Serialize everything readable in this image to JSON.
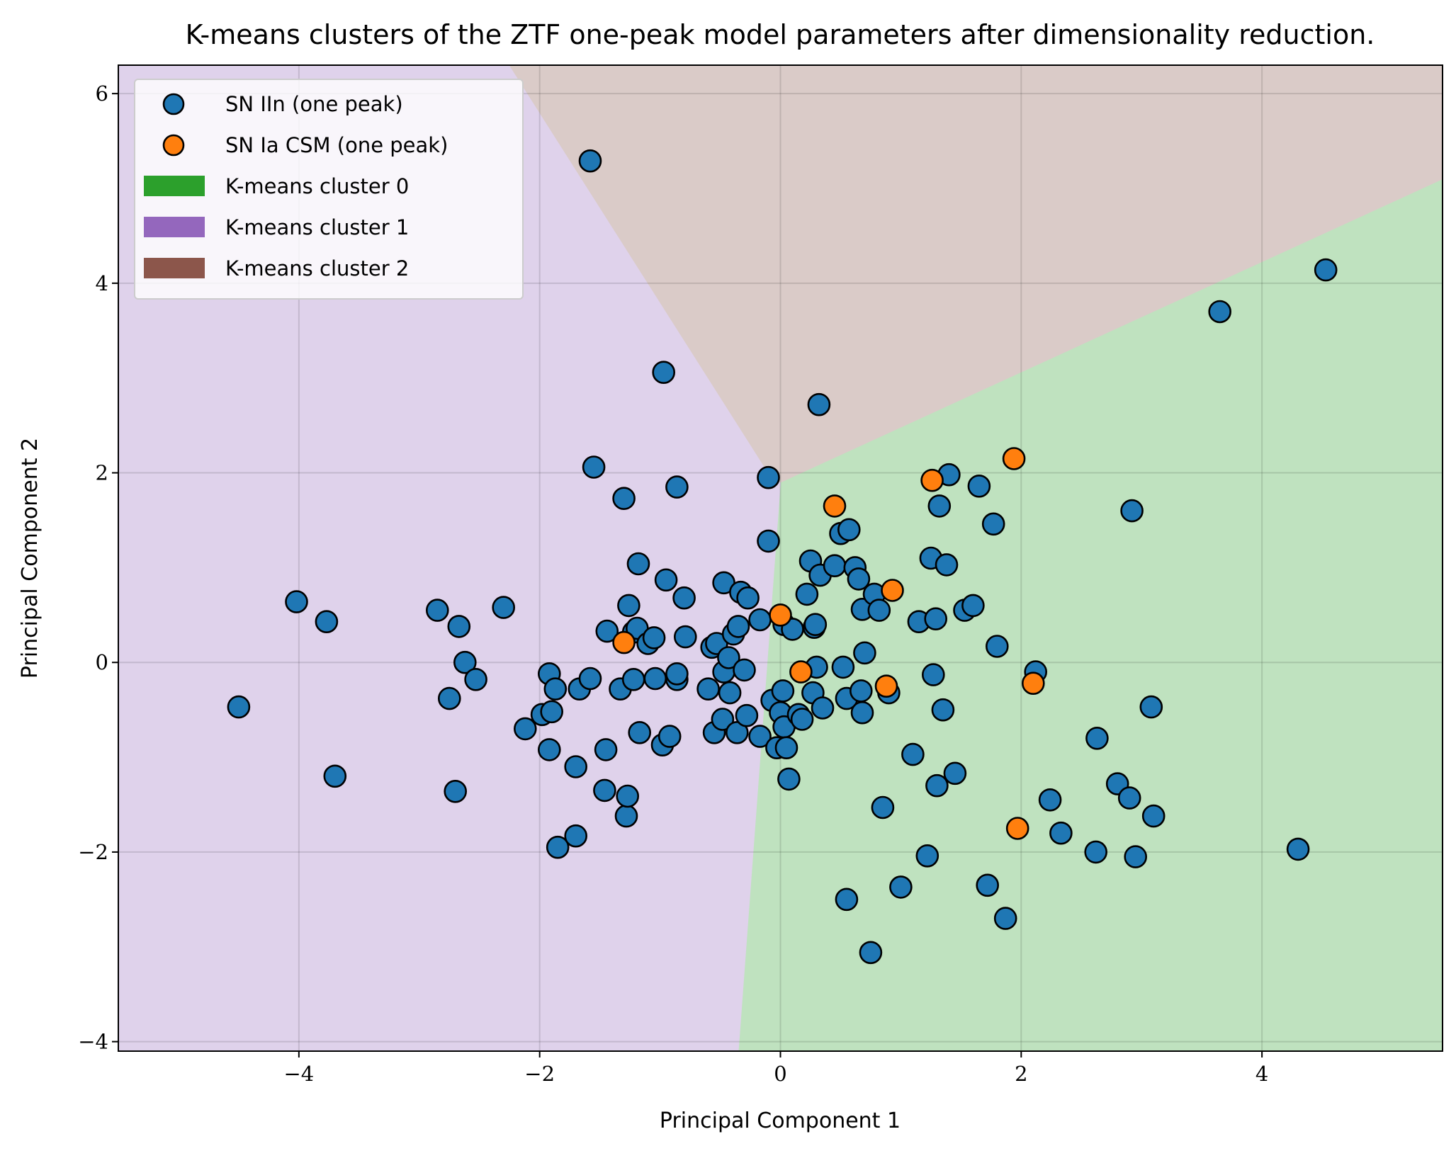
{
  "chart_data": {
    "type": "scatter",
    "title": "K-means clusters of the ZTF one-peak model parameters after dimensionality reduction.",
    "xlabel": "Principal Component 1",
    "ylabel": "Principal Component 2",
    "xlim": [
      -5.5,
      5.5
    ],
    "ylim": [
      -4.1,
      6.3
    ],
    "xticks": [
      -4,
      -2,
      0,
      2,
      4
    ],
    "yticks": [
      -4,
      -2,
      0,
      2,
      4,
      6
    ],
    "xtick_labels": [
      "−4",
      "−2",
      "0",
      "2",
      "4"
    ],
    "ytick_labels": [
      "−4",
      "−2",
      "0",
      "2",
      "4",
      "6"
    ],
    "grid": true,
    "legend_position": "top-left",
    "regions": [
      {
        "name": "K-means cluster 0",
        "color": "#2ca02c",
        "fill": "#bfe2bf",
        "polygon": [
          [
            -0.35,
            -4.1
          ],
          [
            0.0,
            1.9
          ],
          [
            5.5,
            5.1
          ],
          [
            5.5,
            -4.1
          ]
        ]
      },
      {
        "name": "K-means cluster 1",
        "color": "#9467bd",
        "fill": "#dfd2eb",
        "polygon": [
          [
            -5.5,
            6.3
          ],
          [
            -2.25,
            6.3
          ],
          [
            -0.1,
            2.0
          ],
          [
            0.0,
            1.9
          ],
          [
            -0.35,
            -4.1
          ],
          [
            -5.5,
            -4.1
          ]
        ]
      },
      {
        "name": "K-means cluster 2",
        "color": "#8c564b",
        "fill": "#dacbc8",
        "polygon": [
          [
            -2.25,
            6.3
          ],
          [
            5.5,
            6.3
          ],
          [
            5.5,
            5.1
          ],
          [
            0.0,
            1.9
          ],
          [
            -0.1,
            2.0
          ]
        ]
      }
    ],
    "series": [
      {
        "name": "SN IIn (one peak)",
        "color": "#1f77b4",
        "points": [
          [
            -4.5,
            -0.47
          ],
          [
            -4.02,
            0.64
          ],
          [
            -3.77,
            0.43
          ],
          [
            -3.7,
            -1.2
          ],
          [
            -2.85,
            0.55
          ],
          [
            -2.75,
            -0.38
          ],
          [
            -2.7,
            -1.36
          ],
          [
            -2.67,
            0.38
          ],
          [
            -2.62,
            0.0
          ],
          [
            -2.53,
            -0.18
          ],
          [
            -2.3,
            0.58
          ],
          [
            -2.12,
            -0.7
          ],
          [
            -1.98,
            -0.55
          ],
          [
            -1.92,
            -0.12
          ],
          [
            -1.92,
            -0.92
          ],
          [
            -1.9,
            -0.52
          ],
          [
            -1.87,
            -0.28
          ],
          [
            -1.85,
            -1.95
          ],
          [
            -1.7,
            -1.83
          ],
          [
            -1.7,
            -1.1
          ],
          [
            -1.67,
            -0.28
          ],
          [
            -1.58,
            -0.17
          ],
          [
            -1.58,
            5.29
          ],
          [
            -1.55,
            2.06
          ],
          [
            -1.46,
            -1.35
          ],
          [
            -1.45,
            -0.92
          ],
          [
            -1.44,
            0.33
          ],
          [
            -1.33,
            -0.28
          ],
          [
            -1.3,
            1.73
          ],
          [
            -1.28,
            -1.62
          ],
          [
            -1.27,
            -1.41
          ],
          [
            -1.26,
            0.6
          ],
          [
            -1.22,
            -0.18
          ],
          [
            -1.22,
            0.32
          ],
          [
            -1.19,
            0.36
          ],
          [
            -1.18,
            1.04
          ],
          [
            -1.17,
            -0.74
          ],
          [
            -1.1,
            0.2
          ],
          [
            -1.05,
            0.26
          ],
          [
            -1.04,
            -0.17
          ],
          [
            -0.98,
            -0.87
          ],
          [
            -0.97,
            3.06
          ],
          [
            -0.95,
            0.87
          ],
          [
            -0.92,
            -0.78
          ],
          [
            -0.86,
            1.85
          ],
          [
            -0.86,
            -0.18
          ],
          [
            -0.86,
            -0.12
          ],
          [
            -0.8,
            0.68
          ],
          [
            -0.79,
            0.27
          ],
          [
            -0.6,
            -0.28
          ],
          [
            -0.57,
            0.16
          ],
          [
            -0.55,
            -0.74
          ],
          [
            -0.53,
            0.2
          ],
          [
            -0.48,
            -0.6
          ],
          [
            -0.47,
            -0.1
          ],
          [
            -0.47,
            0.84
          ],
          [
            -0.43,
            0.05
          ],
          [
            -0.42,
            -0.32
          ],
          [
            -0.39,
            0.3
          ],
          [
            -0.36,
            -0.74
          ],
          [
            -0.35,
            0.38
          ],
          [
            -0.33,
            0.74
          ],
          [
            -0.3,
            -0.08
          ],
          [
            -0.28,
            -0.56
          ],
          [
            -0.27,
            0.68
          ],
          [
            -0.17,
            -0.78
          ],
          [
            -0.17,
            0.45
          ],
          [
            -0.1,
            1.28
          ],
          [
            -0.1,
            1.95
          ],
          [
            -0.07,
            -0.4
          ],
          [
            -0.03,
            -0.9
          ],
          [
            0.0,
            -0.53
          ],
          [
            0.02,
            -0.3
          ],
          [
            0.03,
            0.4
          ],
          [
            0.03,
            -0.68
          ],
          [
            0.05,
            -0.9
          ],
          [
            0.07,
            -1.23
          ],
          [
            0.1,
            0.35
          ],
          [
            0.15,
            -0.55
          ],
          [
            0.18,
            -0.6
          ],
          [
            0.22,
            0.72
          ],
          [
            0.25,
            1.07
          ],
          [
            0.27,
            -0.32
          ],
          [
            0.28,
            0.37
          ],
          [
            0.29,
            0.4
          ],
          [
            0.3,
            -0.05
          ],
          [
            0.32,
            2.72
          ],
          [
            0.33,
            0.92
          ],
          [
            0.35,
            -0.48
          ],
          [
            0.45,
            1.02
          ],
          [
            0.5,
            1.36
          ],
          [
            0.52,
            -0.05
          ],
          [
            0.55,
            -0.38
          ],
          [
            0.57,
            1.4
          ],
          [
            0.62,
            1.0
          ],
          [
            0.65,
            0.88
          ],
          [
            0.67,
            -0.3
          ],
          [
            0.68,
            -0.53
          ],
          [
            0.68,
            0.56
          ],
          [
            0.7,
            0.1
          ],
          [
            0.78,
            0.72
          ],
          [
            0.82,
            0.55
          ],
          [
            0.85,
            -1.53
          ],
          [
            0.9,
            -0.32
          ],
          [
            1.1,
            -0.97
          ],
          [
            1.15,
            0.43
          ],
          [
            1.22,
            -2.04
          ],
          [
            1.25,
            1.1
          ],
          [
            1.27,
            -0.13
          ],
          [
            1.29,
            0.46
          ],
          [
            1.3,
            -1.3
          ],
          [
            1.32,
            1.65
          ],
          [
            1.35,
            -0.5
          ],
          [
            1.38,
            1.03
          ],
          [
            1.4,
            1.98
          ],
          [
            1.45,
            -1.17
          ],
          [
            1.53,
            0.55
          ],
          [
            1.6,
            0.6
          ],
          [
            1.65,
            1.86
          ],
          [
            1.72,
            -2.35
          ],
          [
            1.77,
            1.46
          ],
          [
            1.8,
            0.17
          ],
          [
            1.87,
            -2.7
          ],
          [
            2.12,
            -0.1
          ],
          [
            2.24,
            -1.45
          ],
          [
            2.33,
            -1.8
          ],
          [
            2.62,
            -2.0
          ],
          [
            2.63,
            -0.8
          ],
          [
            2.8,
            -1.28
          ],
          [
            2.9,
            -1.43
          ],
          [
            2.92,
            1.6
          ],
          [
            2.95,
            -2.05
          ],
          [
            3.08,
            -0.47
          ],
          [
            3.1,
            -1.62
          ],
          [
            3.65,
            3.7
          ],
          [
            4.3,
            -1.97
          ],
          [
            4.53,
            4.14
          ],
          [
            0.55,
            -2.5
          ],
          [
            0.75,
            -3.06
          ],
          [
            1.0,
            -2.37
          ]
        ]
      },
      {
        "name": "SN Ia CSM (one peak)",
        "color": "#ff7f0e",
        "points": [
          [
            -1.3,
            0.21
          ],
          [
            0.0,
            0.5
          ],
          [
            0.17,
            -0.1
          ],
          [
            0.45,
            1.65
          ],
          [
            0.88,
            -0.25
          ],
          [
            0.93,
            0.76
          ],
          [
            1.26,
            1.92
          ],
          [
            1.94,
            2.15
          ],
          [
            1.97,
            -1.75
          ],
          [
            2.1,
            -0.22
          ]
        ]
      }
    ],
    "legend": [
      {
        "label": "SN IIn (one peak)",
        "kind": "marker",
        "color": "#1f77b4"
      },
      {
        "label": "SN Ia CSM (one peak)",
        "kind": "marker",
        "color": "#ff7f0e"
      },
      {
        "label": "K-means cluster 0",
        "kind": "patch",
        "color": "#2ca02c"
      },
      {
        "label": "K-means cluster 1",
        "kind": "patch",
        "color": "#9467bd"
      },
      {
        "label": "K-means cluster 2",
        "kind": "patch",
        "color": "#8c564b"
      }
    ]
  }
}
